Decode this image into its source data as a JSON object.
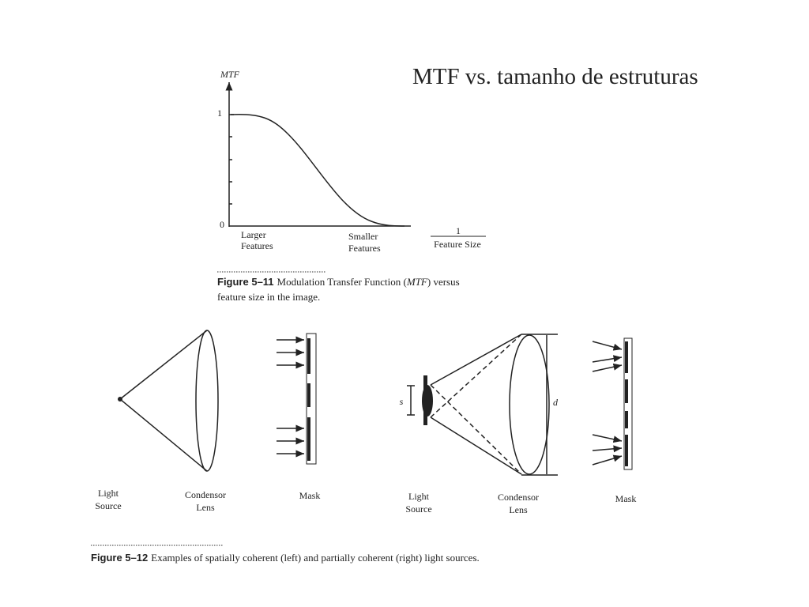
{
  "title": "MTF vs. tamanho de estruturas",
  "figure_11": {
    "y_axis_label": "MTF",
    "y_tick_top": "1",
    "y_tick_bottom": "0",
    "left_label": [
      "Larger",
      "Features"
    ],
    "right_label": [
      "Smaller",
      "Features"
    ],
    "x_axis_numerator": "1",
    "x_axis_denominator": "Feature Size",
    "caption_label": "Figure 5–11",
    "caption_line1_a": "Modulation Transfer Function (",
    "caption_line1_em": "MTF",
    "caption_line1_b": ") versus",
    "caption_line2": "feature size in the image."
  },
  "figure_12": {
    "left": {
      "source": [
        "Light",
        "Source"
      ],
      "lens": [
        "Condensor",
        "Lens"
      ],
      "mask": "Mask"
    },
    "right": {
      "source": [
        "Light",
        "Source"
      ],
      "lens": [
        "Condensor",
        "Lens"
      ],
      "mask": "Mask",
      "s_label": "s",
      "d_label": "d"
    },
    "caption_label": "Figure 5–12",
    "caption_text": "Examples of spatially coherent (left) and partially coherent (right) light sources."
  }
}
